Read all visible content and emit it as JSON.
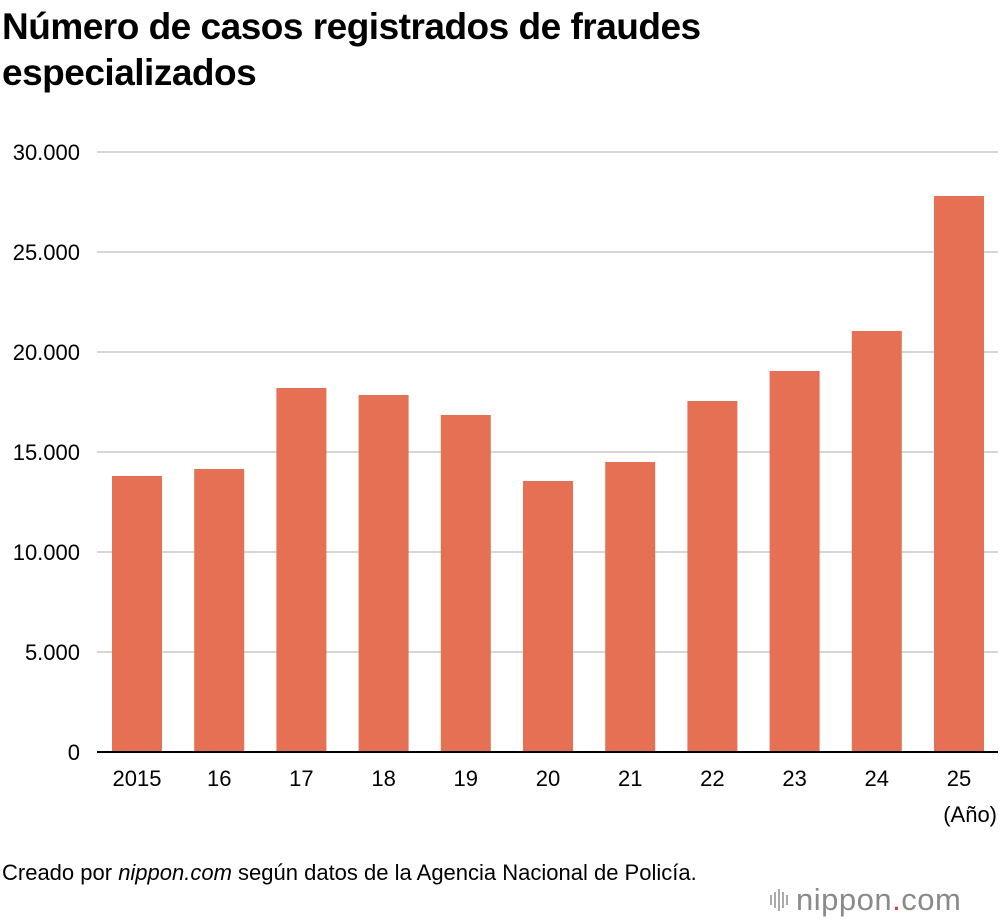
{
  "title": "Número de casos registrados de fraudes especializados",
  "source": {
    "prefix": "Creado por ",
    "site": "nippon.com",
    "suffix": " según datos de la Agencia Nacional de Policía."
  },
  "logo": {
    "left": "nippon",
    "dot": ".",
    "right": "com"
  },
  "colors": {
    "bar": "#e67053",
    "grid": "#c8c8c8",
    "axis": "#000000"
  },
  "chart_data": {
    "type": "bar",
    "title": "Número de casos registrados de fraudes especializados",
    "categories": [
      "2015",
      "16",
      "17",
      "18",
      "19",
      "20",
      "21",
      "22",
      "23",
      "24",
      "25"
    ],
    "values": [
      13800,
      14150,
      18200,
      17850,
      16850,
      13550,
      14500,
      17550,
      19050,
      21050,
      27800
    ],
    "xlabel": "(Año)",
    "ylabel": "",
    "ylim": [
      0,
      30000
    ],
    "yticks": [
      0,
      5000,
      10000,
      15000,
      20000,
      25000,
      30000
    ],
    "ytick_labels": [
      "0",
      "5.000",
      "10.000",
      "15.000",
      "20.000",
      "25.000",
      "30.000"
    ],
    "grid": true,
    "legend": "none"
  }
}
